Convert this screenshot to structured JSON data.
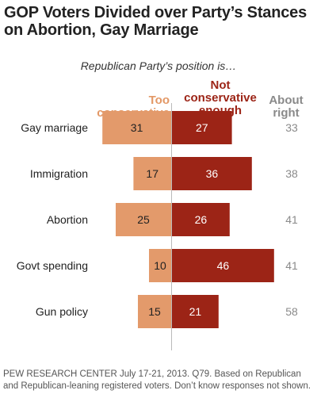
{
  "title": "GOP Voters Divided over Party’s Stances on Abortion, Gay Marriage",
  "subtitle": "Republican Party’s position is…",
  "headers": {
    "too": "Too conservative",
    "not": "Not conservative enough",
    "about": "About right"
  },
  "colors": {
    "too": "#e39a6b",
    "not": "#9c2416",
    "about_text": "#8a8a8a"
  },
  "footer": "PEW RESEARCH CENTER July 17-21, 2013. Q79. Based on Republican and Republican-leaning registered voters. Don’t know responses not shown.",
  "chart_data": {
    "type": "bar",
    "categories": [
      "Gay marriage",
      "Immigration",
      "Abortion",
      "Govt spending",
      "Gun policy"
    ],
    "series": [
      {
        "name": "Too conservative",
        "values": [
          31,
          17,
          25,
          10,
          15
        ]
      },
      {
        "name": "Not conservative enough",
        "values": [
          27,
          36,
          26,
          46,
          21
        ]
      },
      {
        "name": "About right",
        "values": [
          33,
          38,
          41,
          41,
          58
        ]
      }
    ]
  }
}
